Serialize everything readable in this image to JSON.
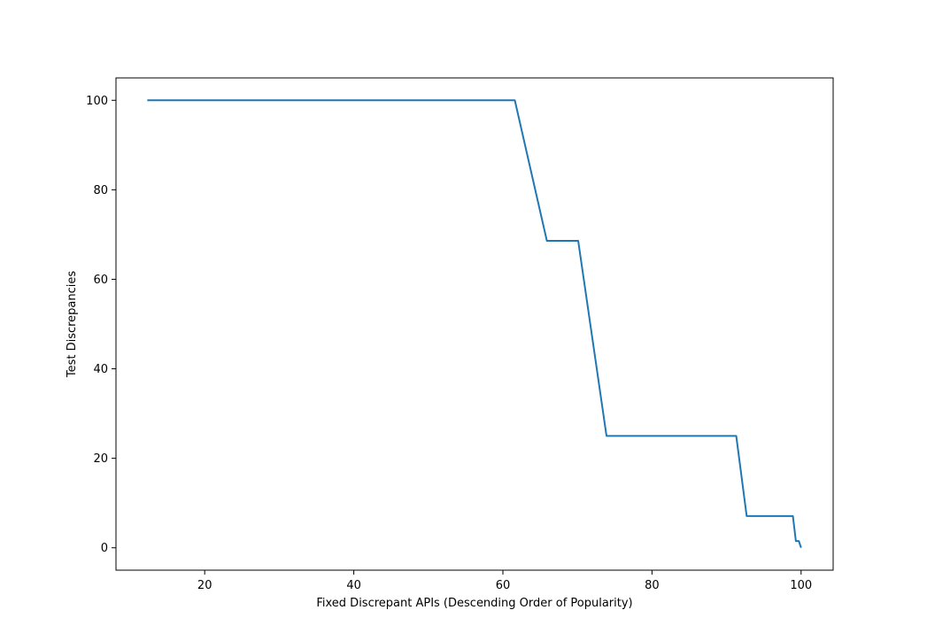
{
  "chart_data": {
    "type": "line",
    "title": "",
    "xlabel": "Fixed Discrepant APIs (Descending Order of Popularity)",
    "ylabel": "Test Discrepancies",
    "xlim": [
      8.1,
      104.3
    ],
    "ylim": [
      -5,
      105
    ],
    "xticks": [
      20,
      40,
      60,
      80,
      100
    ],
    "yticks": [
      0,
      20,
      40,
      60,
      80,
      100
    ],
    "grid": false,
    "legend": "none",
    "series": [
      {
        "color": "#1f77b4",
        "x": [
          12.3,
          61.6,
          65.9,
          70.1,
          73.9,
          91.3,
          92.7,
          98.9,
          99.3,
          99.7,
          100.0
        ],
        "y": [
          100,
          100,
          68.6,
          68.6,
          25.0,
          25.0,
          7.1,
          7.1,
          1.5,
          1.5,
          0.0
        ]
      }
    ]
  }
}
